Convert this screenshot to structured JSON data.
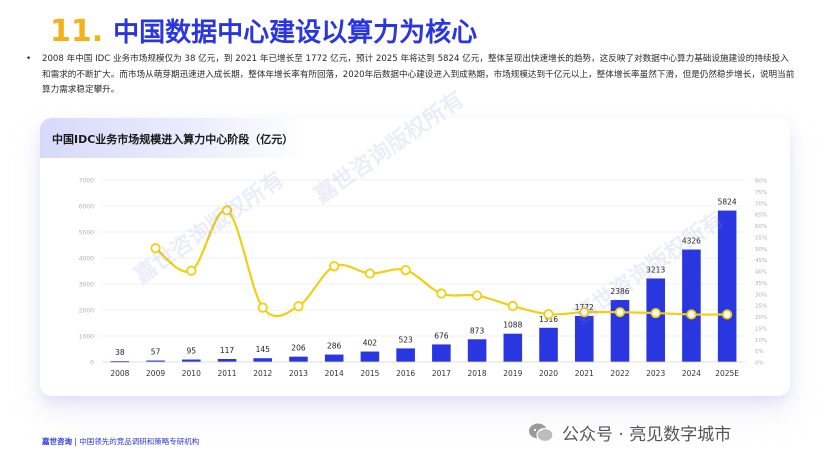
{
  "header": {
    "section_number": "11.",
    "title": "中国数据中心建设以算力为核心"
  },
  "intro": {
    "bullet": "•",
    "text": "2008 年中国 IDC 业务市场规模仅为 38 亿元，到 2021 年已增长至 1772 亿元，预计 2025 年将达到 5824 亿元，整体呈现出快速增长的趋势，这反映了对数据中心算力基础设施建设的持续投入和需求的不断扩大。而市场从萌芽期迅速进入成长期，整体年增长率有所回落，2020年后数据中心建设进入到成熟期，市场规模达到千亿元以上，整体增长率虽然下滑，但是仍然稳步增长，说明当前算力需求稳定攀升。"
  },
  "chart_data": {
    "type": "bar+line",
    "title": "中国IDC业务市场规模进入算力中心阶段（亿元）",
    "categories": [
      "2008",
      "2009",
      "2010",
      "2011",
      "2012",
      "2013",
      "2014",
      "2015",
      "2016",
      "2017",
      "2018",
      "2019",
      "2020",
      "2021",
      "2022",
      "2023",
      "2024",
      "2025E"
    ],
    "series": [
      {
        "name": "市场规模",
        "type": "bar",
        "values": [
          38,
          57,
          95,
          117,
          145,
          206,
          286,
          402,
          523,
          676,
          873,
          1088,
          1316,
          1772,
          2386,
          3213,
          4326,
          5824
        ],
        "data_labels": [
          "38",
          "57",
          "95",
          "117",
          "145",
          "206",
          "286",
          "402",
          "523",
          "676",
          "873",
          "1088",
          "1316",
          "1772",
          "2386",
          "3213",
          "4326",
          "5824"
        ],
        "color": "#2a36e0"
      },
      {
        "name": "增长率",
        "type": "line",
        "values": [
          null,
          50,
          40.1,
          66.7,
          23.9,
          24.5,
          42.1,
          38.9,
          40.4,
          30.1,
          29.2,
          24.6,
          21.0,
          21.9,
          21.9,
          21.5,
          20.9,
          20.9
        ],
        "color": "#f0d010"
      }
    ],
    "y_left": {
      "ylim": [
        0,
        7000
      ],
      "ticks": [
        "0",
        "1000",
        "2000",
        "3000",
        "4000",
        "5000",
        "6000",
        "7000"
      ]
    },
    "y_right": {
      "ylim": [
        0,
        80
      ],
      "ticks": [
        "0%",
        "5%",
        "10%",
        "15%",
        "20%",
        "25%",
        "30%",
        "35%",
        "40%",
        "45%",
        "50%",
        "55%",
        "60%",
        "65%",
        "70%",
        "75%",
        "80%"
      ]
    },
    "grid": true
  },
  "footer": {
    "brand": "嘉世咨询",
    "separator": "|",
    "slogan": "中国领先的竞品调研和策略专研机构"
  },
  "badge": {
    "text": "公众号 · 亮见数字城市"
  },
  "watermark": {
    "text": "嘉世咨询版权所有"
  },
  "colors": {
    "accent": "#2a36e0",
    "number": "#f3b21a",
    "line": "#f0d010"
  }
}
